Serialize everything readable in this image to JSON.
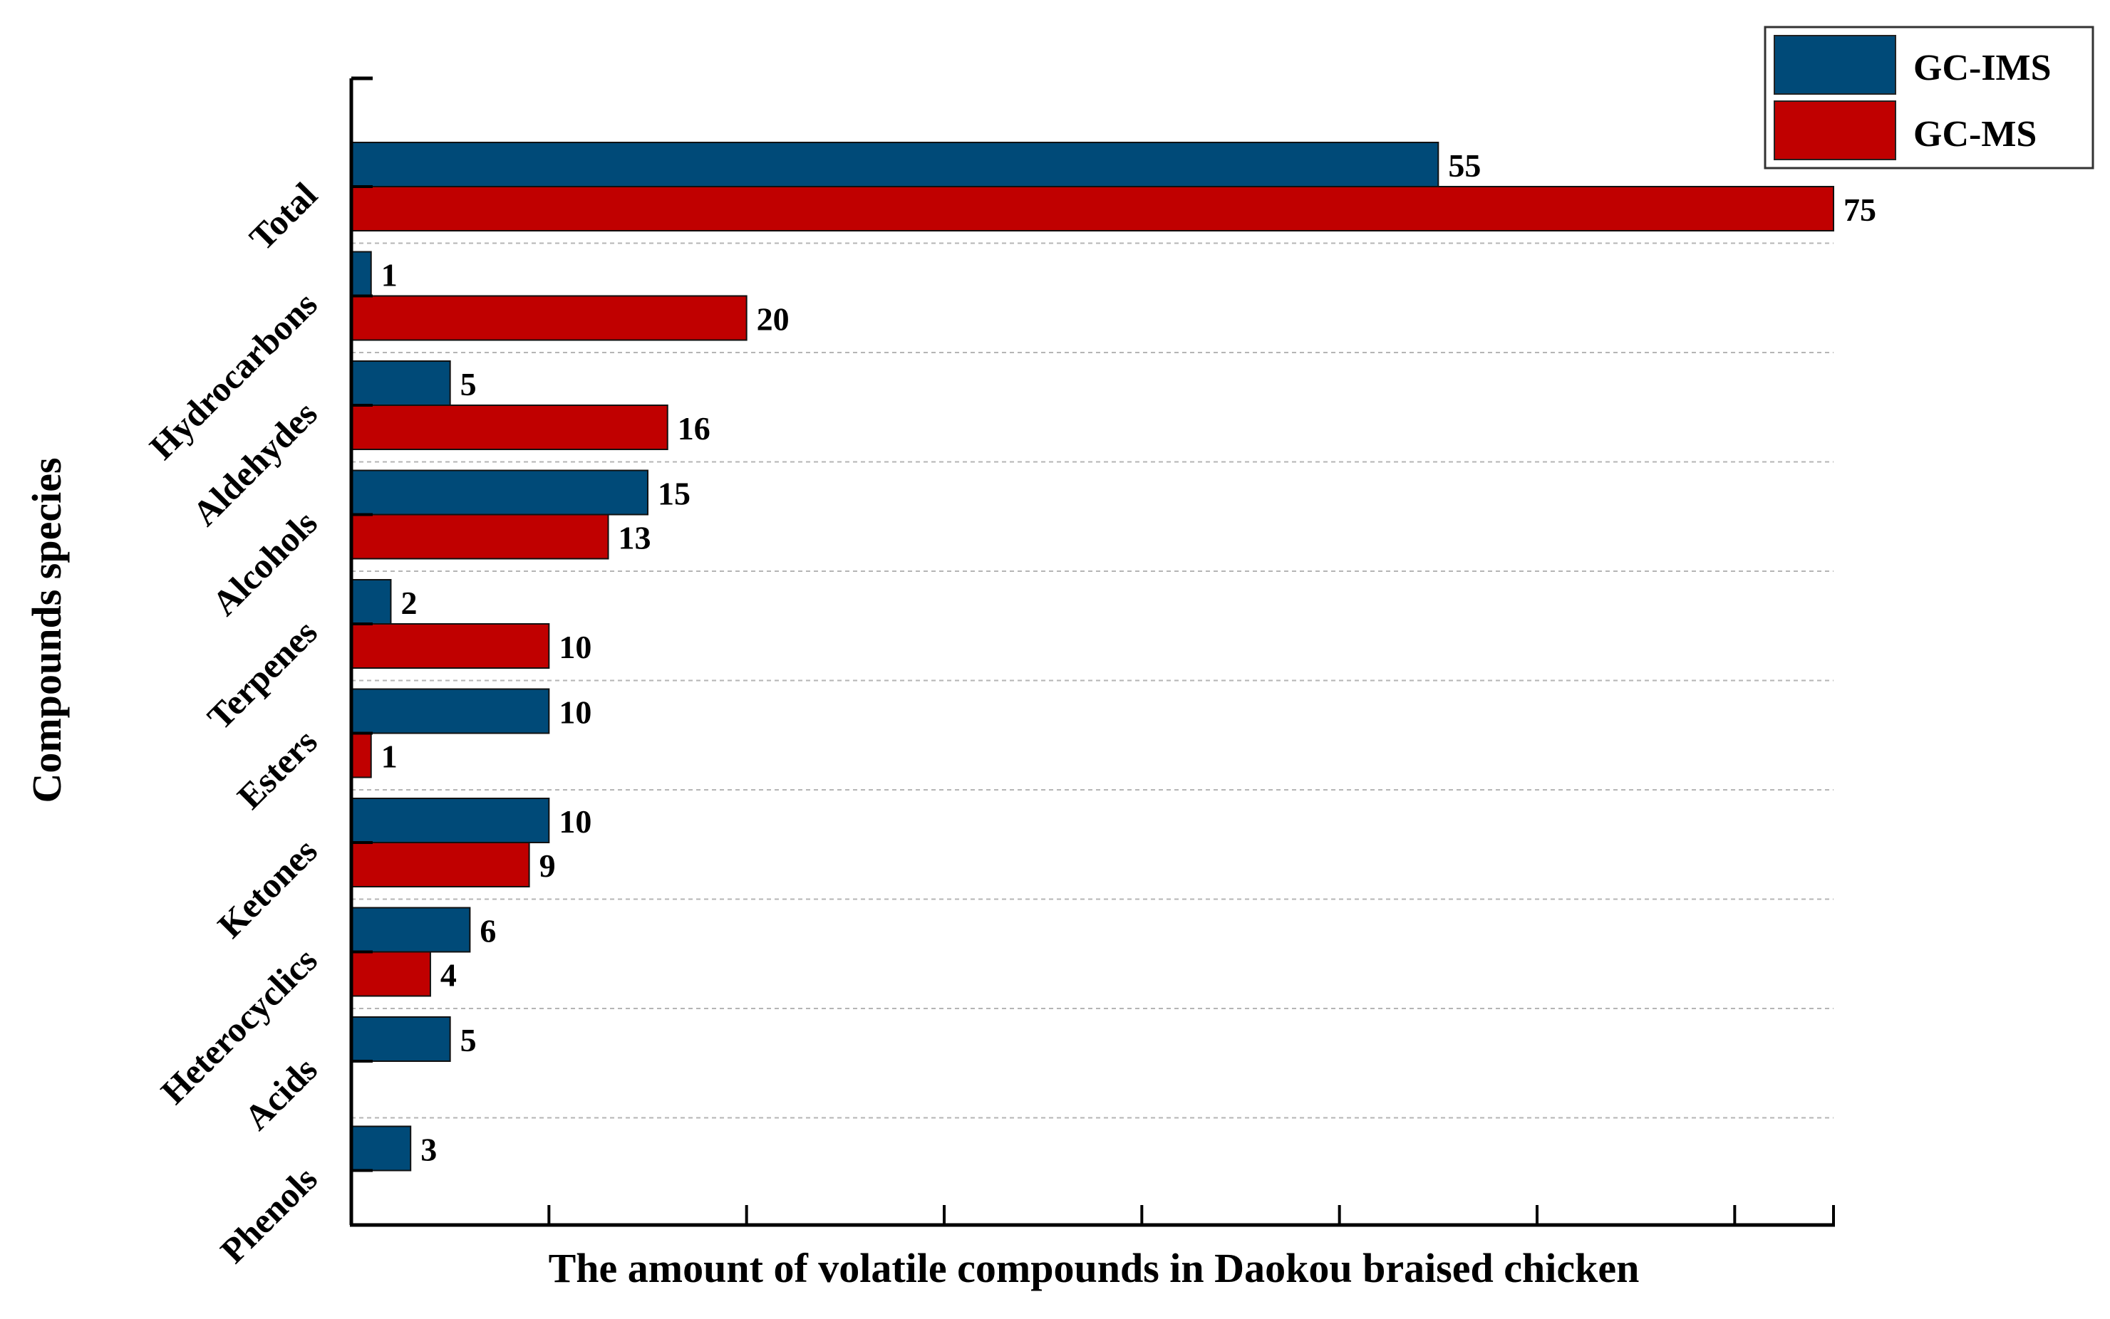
{
  "chart_data": {
    "type": "bar",
    "orientation": "horizontal",
    "xlabel": "The amount of volatile compounds in Daokou braised chicken",
    "ylabel": "Compounds species",
    "xlim": [
      0,
      75
    ],
    "categories": [
      "Total",
      "Hydrocarbons",
      "Aldehydes",
      "Alcohols",
      "Terpenes",
      "Esters",
      "Ketones",
      "Heterocyclics",
      "Acids",
      "Phenols"
    ],
    "series": [
      {
        "name": "GC-IMS",
        "color": "#004a78",
        "values": [
          55,
          1,
          5,
          15,
          2,
          10,
          10,
          6,
          5,
          3
        ]
      },
      {
        "name": "GC-MS",
        "color": "#c00000",
        "values": [
          75,
          20,
          16,
          13,
          10,
          1,
          9,
          4,
          null,
          null
        ]
      }
    ],
    "legend_position": "top-right",
    "grid": "dashed horizontal separators between categories",
    "x_tick_labels_shown": false
  }
}
